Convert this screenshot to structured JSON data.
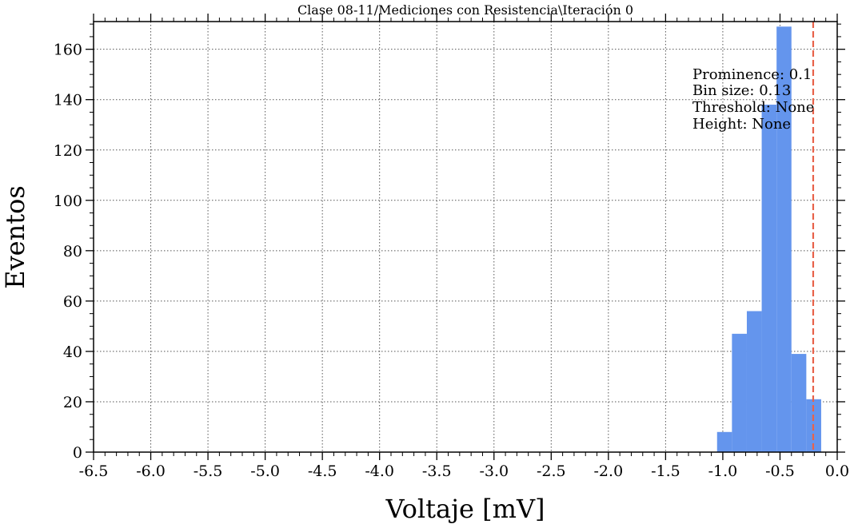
{
  "chart_data": {
    "type": "bar",
    "title": "Clase 08-11/Mediciones con Resistencia\\Iteración 0",
    "xlabel": "Voltaje [mV]",
    "ylabel": "Eventos",
    "xlim": [
      -6.5,
      0.0
    ],
    "ylim": [
      0,
      171
    ],
    "x_ticks": [
      "-6.5",
      "-6.0",
      "-5.5",
      "-5.0",
      "-4.5",
      "-4.0",
      "-3.5",
      "-3.0",
      "-2.5",
      "-2.0",
      "-1.5",
      "-1.0",
      "-0.5",
      "0.0"
    ],
    "x_tick_values": [
      -6.5,
      -6.0,
      -5.5,
      -5.0,
      -4.5,
      -4.0,
      -3.5,
      -3.0,
      -2.5,
      -2.0,
      -1.5,
      -1.0,
      -0.5,
      0.0
    ],
    "y_ticks": [
      "0",
      "20",
      "40",
      "60",
      "80",
      "100",
      "120",
      "140",
      "160"
    ],
    "y_tick_values": [
      0,
      20,
      40,
      60,
      80,
      100,
      120,
      140,
      160
    ],
    "grid": true,
    "bar_color": "#6495ed",
    "bins": [
      {
        "x0": -1.05,
        "x1": -0.92,
        "count": 8
      },
      {
        "x0": -0.92,
        "x1": -0.79,
        "count": 47
      },
      {
        "x0": -0.79,
        "x1": -0.66,
        "count": 56
      },
      {
        "x0": -0.66,
        "x1": -0.53,
        "count": 138
      },
      {
        "x0": -0.53,
        "x1": -0.4,
        "count": 169
      },
      {
        "x0": -0.4,
        "x1": -0.27,
        "count": 39
      },
      {
        "x0": -0.27,
        "x1": -0.14,
        "count": 21
      }
    ],
    "threshold_line": {
      "x": -0.21,
      "color": "#e8624a"
    },
    "annotations": [
      "Prominence: 0.1",
      "Bin size: 0.13",
      "Threshold: None",
      "Height: None"
    ]
  }
}
